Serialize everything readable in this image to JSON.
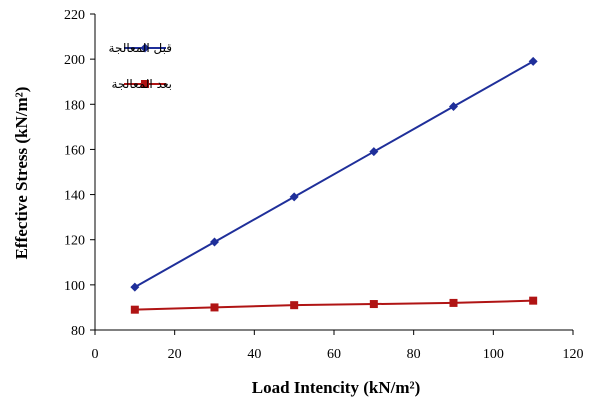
{
  "chart_data": {
    "type": "line",
    "title": "",
    "xlabel": "Load Intencity  (kN/m²)",
    "ylabel": "Effective Stress (kN/m²)",
    "xlim": [
      0,
      120
    ],
    "ylim": [
      80,
      220
    ],
    "x_ticks": [
      0,
      20,
      40,
      60,
      80,
      100,
      120
    ],
    "y_ticks": [
      80,
      100,
      120,
      140,
      160,
      180,
      200,
      220
    ],
    "grid": false,
    "legend_position": "top-left",
    "series": [
      {
        "name": "قبل المعالجة",
        "color": "#1f2f9a",
        "marker": "diamond",
        "x": [
          10,
          30,
          50,
          70,
          90,
          110
        ],
        "y": [
          99,
          119,
          139,
          159,
          179,
          199
        ]
      },
      {
        "name": "بعد المعالجة",
        "color": "#b01414",
        "marker": "square",
        "x": [
          10,
          30,
          50,
          70,
          90,
          110
        ],
        "y": [
          89,
          90,
          91,
          91.5,
          92,
          93
        ]
      }
    ]
  }
}
